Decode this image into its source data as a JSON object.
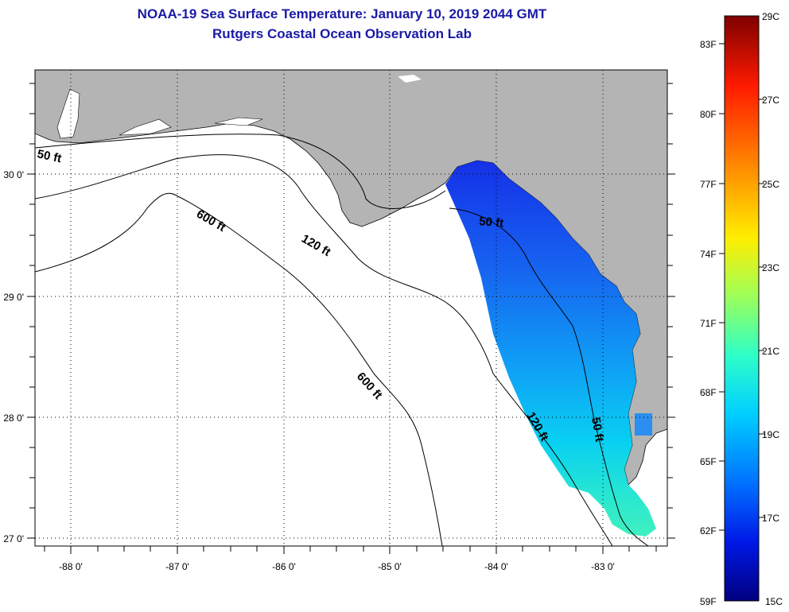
{
  "title": {
    "line1": "NOAA-19 Sea Surface Temperature:  January 10, 2019 2044 GMT",
    "line2": "Rutgers Coastal Ocean Observation Lab"
  },
  "axes": {
    "longitude_labels": [
      "-88 0'",
      "-87 0'",
      "-86 0'",
      "-85 0'",
      "-84 0'",
      "-83 0'"
    ],
    "latitude_labels": [
      "30 0'",
      "29 0'",
      "28 0'",
      "27 0'"
    ]
  },
  "contours": [
    {
      "label": "50 ft",
      "depth": 50
    },
    {
      "label": "120 ft",
      "depth": 120
    },
    {
      "label": "600 ft",
      "depth": 600
    },
    {
      "label": "50 ft",
      "depth": 50
    },
    {
      "label": "600 ft",
      "depth": 600
    },
    {
      "label": "120 ft",
      "depth": 120
    },
    {
      "label": "50 ft",
      "depth": 50
    }
  ],
  "colorbar": {
    "fahrenheit_labels": [
      "83F",
      "80F",
      "77F",
      "74F",
      "71F",
      "68F",
      "65F",
      "62F",
      "59F"
    ],
    "celsius_labels": [
      "29C",
      "27C",
      "25C",
      "23C",
      "21C",
      "19C",
      "17C",
      "15C"
    ],
    "min_c": 15,
    "max_c": 29
  },
  "colors": {
    "title": "#1a1aa6",
    "land": "#b4b4b4",
    "water": "#ffffff"
  }
}
